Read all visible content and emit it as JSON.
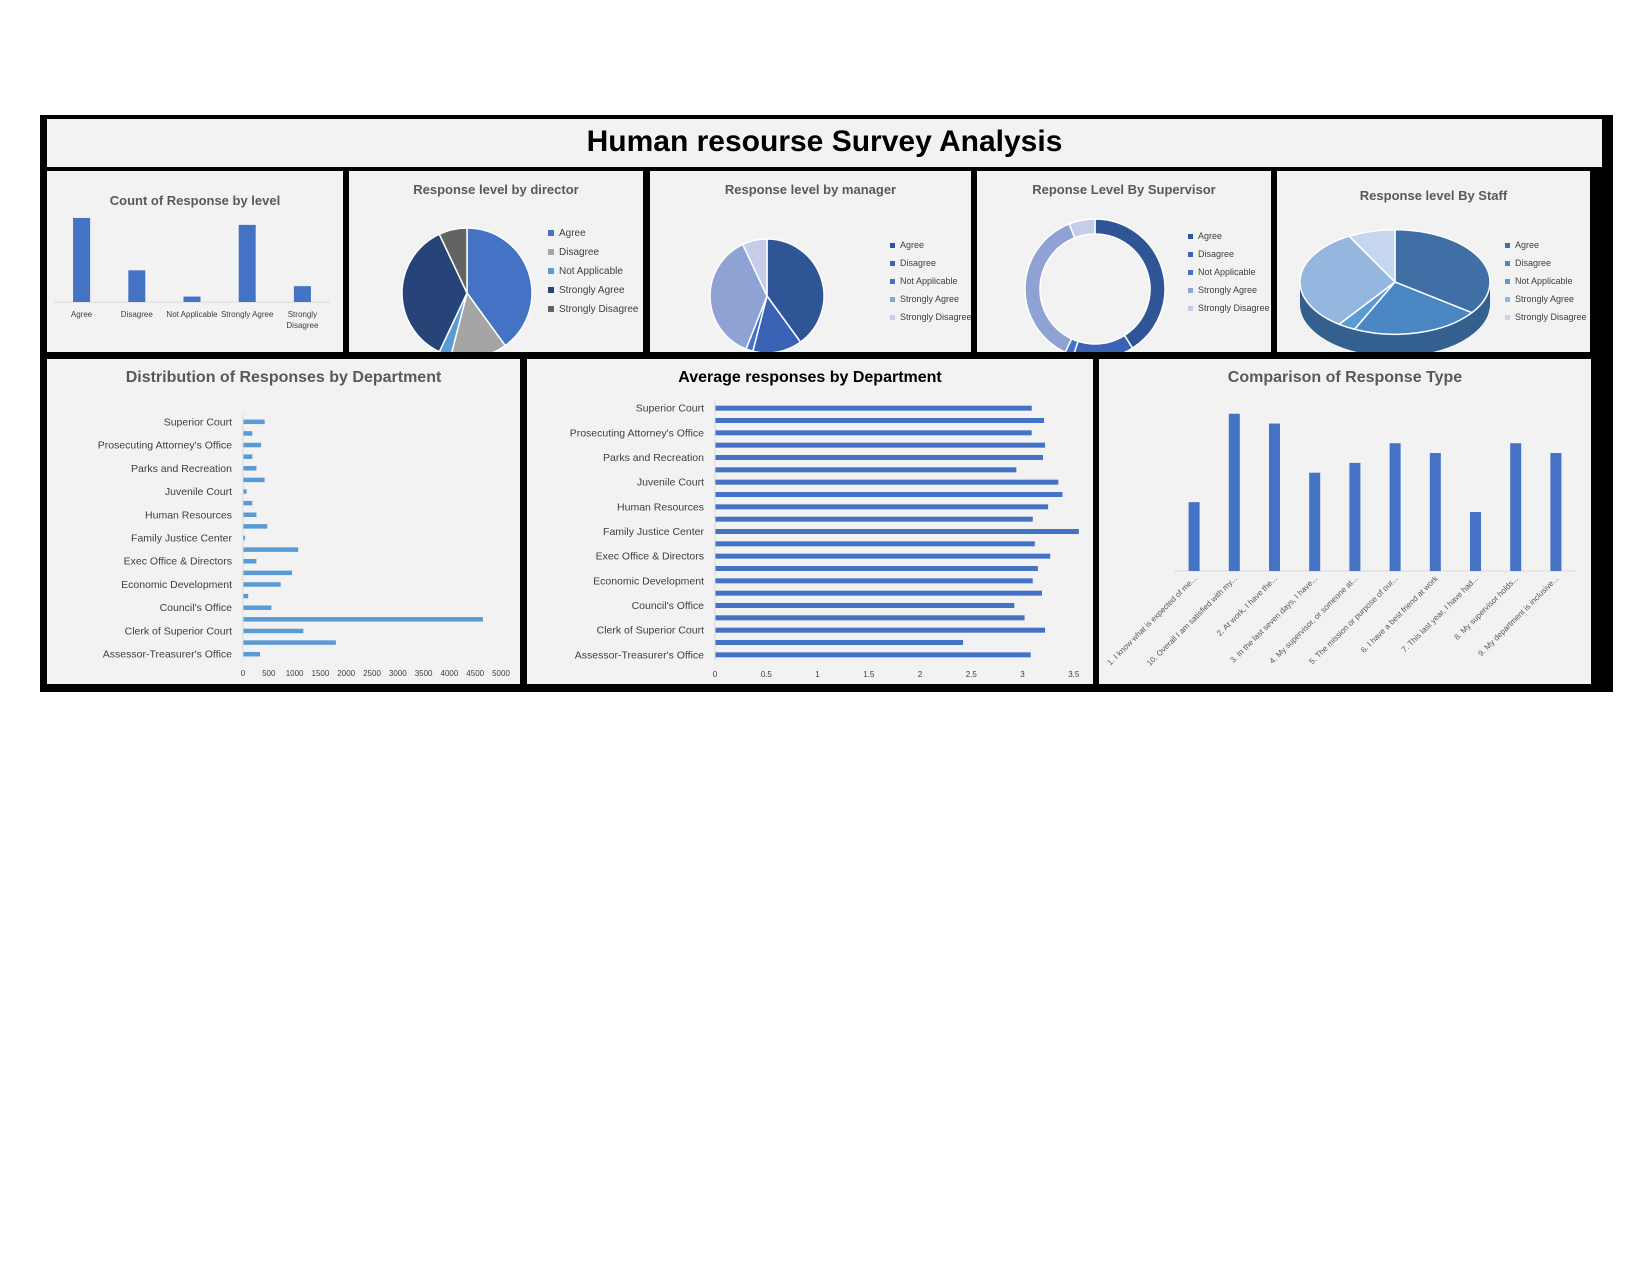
{
  "dashboard": {
    "title": "Human resourse Survey Analysis"
  },
  "colors": {
    "blue": "#4472c4",
    "gray": "#a5a5a5",
    "light_blue": "#5b9bd5",
    "dark_navy": "#264478",
    "dark_gray": "#636363",
    "bar_light": "#5b9bd5"
  },
  "chart_data": [
    {
      "id": "count-by-level",
      "type": "bar",
      "title": "Count of Response by level",
      "categories": [
        "Agree",
        "Disagree",
        "Not Applicable",
        "Strongly Agree",
        "Strongly Disagree"
      ],
      "values": [
        8500,
        3200,
        550,
        7800,
        1600
      ],
      "ylim": [
        0,
        9000
      ]
    },
    {
      "id": "director-pie",
      "type": "pie",
      "title": "Response level by director",
      "labels": [
        "Agree",
        "Disagree",
        "Not Applicable",
        "Strongly Agree",
        "Strongly Disagree"
      ],
      "values": [
        40,
        14,
        3,
        36,
        7
      ],
      "colors": [
        "#4472c4",
        "#a5a5a5",
        "#5b9bd5",
        "#264478",
        "#636363"
      ]
    },
    {
      "id": "manager-pie",
      "type": "pie",
      "title": "Response level by manager",
      "labels": [
        "Agree",
        "Disagree",
        "Not Applicable",
        "Strongly Agree",
        "Strongly Disagree"
      ],
      "values": [
        40,
        14,
        2,
        37,
        7
      ],
      "colors": [
        "#2f5597",
        "#3a62b5",
        "#4472c4",
        "#8fa2d4",
        "#c5cde8"
      ]
    },
    {
      "id": "supervisor-donut",
      "type": "pie",
      "title": "Reponse Level By Supervisor",
      "labels": [
        "Agree",
        "Disagree",
        "Not Applicable",
        "Strongly Agree",
        "Strongly Disagree"
      ],
      "values": [
        41,
        14,
        2,
        37,
        6
      ],
      "colors": [
        "#2f5597",
        "#3a62b5",
        "#4472c4",
        "#8fa2d4",
        "#c5cde8"
      ]
    },
    {
      "id": "staff-pie",
      "type": "pie",
      "title": "Response level By Staff",
      "labels": [
        "Agree",
        "Disagree",
        "Not Applicable",
        "Strongly Agree",
        "Strongly Disagree"
      ],
      "values": [
        35,
        22,
        3,
        32,
        8
      ],
      "colors": [
        "#3f6fa5",
        "#4a86c2",
        "#5b9bd5",
        "#95b6de",
        "#c5d6ee"
      ]
    },
    {
      "id": "dist-by-dept",
      "type": "bar",
      "orientation": "horizontal",
      "title": "Distribution of Responses by Department",
      "tick_labels": [
        "Superior Court",
        "Prosecuting Attorney's Office",
        "Parks and Recreation",
        "Juvenile Court",
        "Human Resources",
        "Family Justice Center",
        "Exec Office & Directors",
        "Economic Development",
        "Council's Office",
        "Clerk of Superior Court",
        "Assessor-Treasurer's Office"
      ],
      "values": [
        330,
        1800,
        1170,
        4650,
        550,
        100,
        730,
        950,
        260,
        1070,
        40,
        470,
        260,
        180,
        70,
        420,
        260,
        180,
        350,
        180,
        420
      ],
      "xlim": [
        0,
        5000
      ],
      "xticks": [
        0,
        500,
        1000,
        1500,
        2000,
        2500,
        3000,
        3500,
        4000,
        4500,
        5000
      ]
    },
    {
      "id": "avg-by-dept",
      "type": "bar",
      "orientation": "horizontal",
      "title": "Average responses by Department",
      "tick_labels": [
        "Superior Court",
        "Prosecuting Attorney's Office",
        "Parks and Recreation",
        "Juvenile Court",
        "Human Resources",
        "Family Justice Center",
        "Exec Office & Directors",
        "Economic Development",
        "Council's Office",
        "Clerk of Superior Court",
        "Assessor-Treasurer's Office"
      ],
      "values": [
        3.08,
        2.42,
        3.22,
        3.02,
        2.92,
        3.19,
        3.1,
        3.15,
        3.27,
        3.12,
        3.55,
        3.1,
        3.25,
        3.39,
        3.35,
        2.94,
        3.2,
        3.22,
        3.09,
        3.21,
        3.09
      ],
      "xlim": [
        0,
        4
      ],
      "xticks": [
        "0",
        "0.5",
        "1",
        "1.5",
        "2",
        "2.5",
        "3",
        "3.5",
        "4"
      ]
    },
    {
      "id": "response-type",
      "type": "bar",
      "title": "Comparison of Response Type",
      "categories": [
        "1. I know what is expected of me...",
        "10. Overall I am satisfied with my...",
        "2. At work, I have the...",
        "3. In the last seven days, I have...",
        "4. My supervisor, or someone at...",
        "5. The mission or purpose of our...",
        "6. I have a best friend at work",
        "7. This last year, I have had...",
        "8. My supervisor holds...",
        "9. My department is inclusive..."
      ],
      "values": [
        1400,
        3200,
        3000,
        2000,
        2200,
        2600,
        2400,
        1200,
        2600,
        2400
      ],
      "ylim": [
        0,
        3500
      ]
    }
  ]
}
